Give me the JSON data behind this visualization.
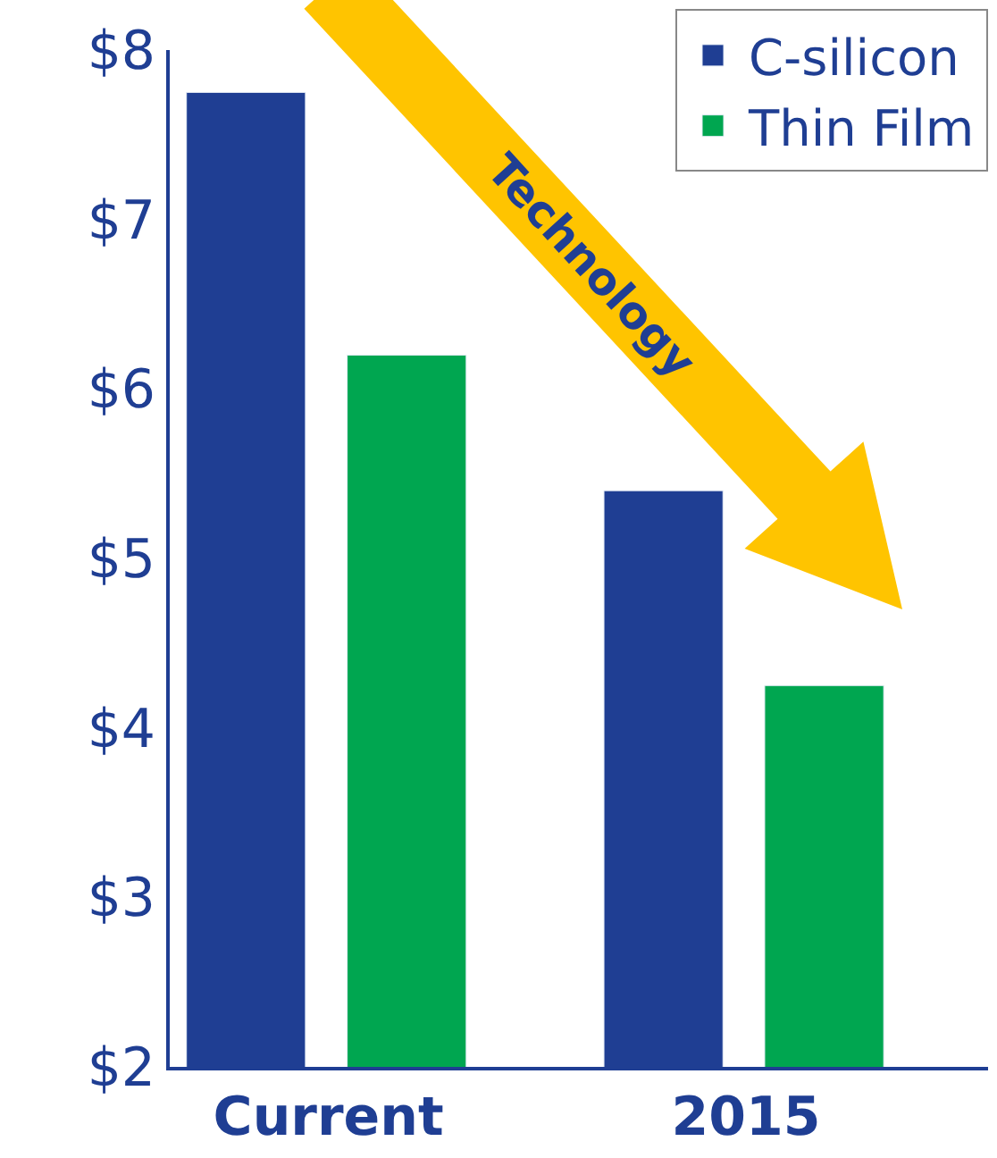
{
  "chart_data": {
    "type": "bar",
    "categories": [
      "Current",
      "2015"
    ],
    "series": [
      {
        "name": "C-silicon",
        "color": "#1f3e93",
        "values": [
          7.75,
          5.4
        ]
      },
      {
        "name": "Thin Film",
        "color": "#00a650",
        "values": [
          6.2,
          4.25
        ]
      }
    ],
    "ylim": [
      2,
      8
    ],
    "yticks": [
      {
        "value": 2,
        "label": "$2"
      },
      {
        "value": 3,
        "label": "$3"
      },
      {
        "value": 4,
        "label": "$4"
      },
      {
        "value": 5,
        "label": "$5"
      },
      {
        "value": 6,
        "label": "$6"
      },
      {
        "value": 7,
        "label": "$7"
      },
      {
        "value": 8,
        "label": "$8"
      }
    ],
    "annotations": [
      "Technology"
    ],
    "legend": "top right",
    "grid": false
  }
}
